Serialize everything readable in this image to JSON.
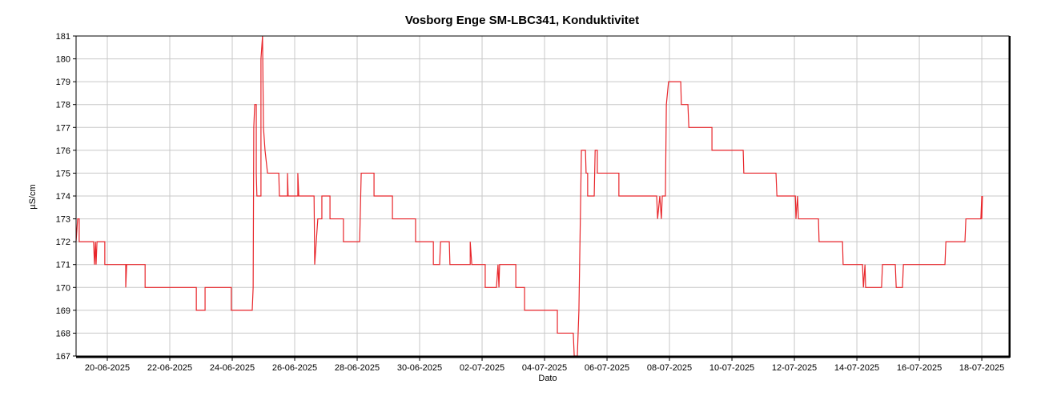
{
  "chart_data": {
    "type": "line",
    "title": "Vosborg Enge SM-LBC341, Konduktivitet",
    "x_label": "Dato",
    "y_label": "µS/cm",
    "grid": true,
    "xlim": [
      20258,
      20287.87
    ],
    "ylim": [
      167,
      181
    ],
    "yticks": [
      167,
      168,
      169,
      170,
      171,
      172,
      173,
      174,
      175,
      176,
      177,
      178,
      179,
      180,
      181
    ],
    "xticks": [
      {
        "value": 20259,
        "label": "20-06-2025"
      },
      {
        "value": 20261,
        "label": "22-06-2025"
      },
      {
        "value": 20263,
        "label": "24-06-2025"
      },
      {
        "value": 20265,
        "label": "26-06-2025"
      },
      {
        "value": 20267,
        "label": "28-06-2025"
      },
      {
        "value": 20269,
        "label": "30-06-2025"
      },
      {
        "value": 20271,
        "label": "02-07-2025"
      },
      {
        "value": 20273,
        "label": "04-07-2025"
      },
      {
        "value": 20275,
        "label": "06-07-2025"
      },
      {
        "value": 20277,
        "label": "08-07-2025"
      },
      {
        "value": 20279,
        "label": "10-07-2025"
      },
      {
        "value": 20281,
        "label": "12-07-2025"
      },
      {
        "value": 20283,
        "label": "14-07-2025"
      },
      {
        "value": 20285,
        "label": "16-07-2025"
      },
      {
        "value": 20287,
        "label": "18-07-2025"
      }
    ],
    "x": [
      20258.0,
      20258.05,
      20258.1,
      20258.1,
      20258.56,
      20258.59,
      20258.62,
      20258.64,
      20258.67,
      20258.92,
      20258.92,
      20259.59,
      20259.59,
      20259.62,
      20260.21,
      20260.21,
      20261.85,
      20261.85,
      20262.13,
      20262.13,
      20262.97,
      20262.97,
      20263.64,
      20263.67,
      20263.69,
      20263.72,
      20263.77,
      20263.77,
      20263.79,
      20263.92,
      20263.92,
      20263.97,
      20264.0,
      20264.05,
      20264.13,
      20264.49,
      20264.51,
      20264.77,
      20264.77,
      20264.79,
      20265.1,
      20265.1,
      20265.13,
      20265.62,
      20265.64,
      20265.74,
      20265.87,
      20265.87,
      20266.13,
      20266.13,
      20266.56,
      20266.56,
      20267.08,
      20267.13,
      20267.54,
      20267.54,
      20268.13,
      20268.13,
      20268.87,
      20268.87,
      20269.44,
      20269.44,
      20269.64,
      20269.67,
      20269.95,
      20269.97,
      20270.62,
      20270.62,
      20270.67,
      20271.1,
      20271.1,
      20271.46,
      20271.51,
      20271.54,
      20271.56,
      20272.08,
      20272.08,
      20272.36,
      20272.36,
      20273.41,
      20273.41,
      20273.92,
      20273.95,
      20274.05,
      20274.1,
      20274.18,
      20274.31,
      20274.33,
      20274.38,
      20274.38,
      20274.59,
      20274.62,
      20274.69,
      20274.69,
      20275.38,
      20275.38,
      20276.59,
      20276.62,
      20276.69,
      20276.74,
      20276.77,
      20276.87,
      20276.9,
      20276.97,
      20277.36,
      20277.38,
      20277.59,
      20277.62,
      20278.36,
      20278.36,
      20279.36,
      20279.38,
      20280.41,
      20280.44,
      20281.03,
      20281.05,
      20281.1,
      20281.13,
      20281.77,
      20281.79,
      20282.54,
      20282.56,
      20283.18,
      20283.21,
      20283.26,
      20283.28,
      20283.79,
      20283.82,
      20284.23,
      20284.26,
      20284.46,
      20284.49,
      20285.82,
      20285.85,
      20286.46,
      20286.49,
      20286.97,
      20287.0,
      20287.0,
      20287.02
    ],
    "series": [
      {
        "name": "Konduktivitet",
        "color": "#e8262b",
        "values": [
          172,
          173,
          173,
          172,
          172,
          171,
          172,
          171,
          172,
          172,
          171,
          171,
          170,
          171,
          171,
          170,
          170,
          169,
          169,
          170,
          170,
          169,
          169,
          170,
          177,
          178,
          178,
          175,
          174,
          174,
          180,
          181,
          177,
          176,
          175,
          175,
          174,
          174,
          175,
          174,
          174,
          175,
          174,
          174,
          171,
          173,
          173,
          174,
          174,
          173,
          173,
          172,
          172,
          175,
          175,
          174,
          174,
          173,
          173,
          172,
          172,
          171,
          171,
          172,
          172,
          171,
          171,
          172,
          171,
          171,
          170,
          170,
          171,
          170,
          171,
          171,
          170,
          170,
          169,
          169,
          168,
          168,
          167,
          167,
          169,
          176,
          176,
          175,
          175,
          174,
          174,
          176,
          176,
          175,
          175,
          174,
          174,
          173,
          174,
          173,
          174,
          174,
          178,
          179,
          179,
          178,
          178,
          177,
          177,
          176,
          176,
          175,
          175,
          174,
          174,
          173,
          174,
          173,
          173,
          172,
          172,
          171,
          171,
          170,
          171,
          170,
          170,
          171,
          171,
          170,
          170,
          171,
          171,
          172,
          172,
          173,
          173,
          174,
          173,
          174
        ]
      }
    ]
  }
}
